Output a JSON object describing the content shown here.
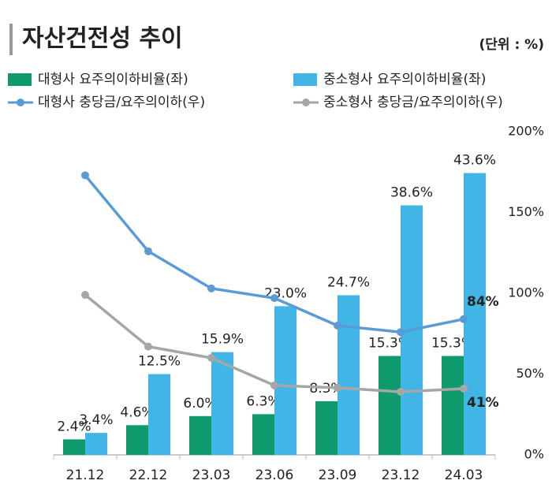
{
  "chart_data": {
    "type": "bar-line",
    "title": "자산건전성 추이",
    "unit_note": "(단위 : %)",
    "categories": [
      "21.12",
      "22.12",
      "23.03",
      "23.06",
      "23.09",
      "23.12",
      "24.03"
    ],
    "ylim": [
      0,
      50
    ],
    "y2lim": [
      0,
      200
    ],
    "y2ticks": [
      {
        "value": 0,
        "label": "0%"
      },
      {
        "value": 50,
        "label": "50%"
      },
      {
        "value": 100,
        "label": "100%"
      },
      {
        "value": 150,
        "label": "150%"
      },
      {
        "value": 200,
        "label": "200%"
      }
    ],
    "series": [
      {
        "name": "대형사 요주의이하비율(좌)",
        "type": "bar",
        "color": "#0f9a6e",
        "values": [
          2.4,
          4.6,
          6.0,
          6.3,
          8.3,
          15.3,
          15.3
        ],
        "value_labels": [
          "2.4%",
          "4.6%",
          "6.0%",
          "6.3%",
          "8.3%",
          "15.3%",
          "15.3%"
        ]
      },
      {
        "name": "중소형사 요주의이하비율(좌)",
        "type": "bar",
        "color": "#41b6e6",
        "values": [
          3.4,
          12.5,
          15.9,
          23.0,
          24.7,
          38.6,
          43.6
        ],
        "value_labels": [
          "3.4%",
          "12.5%",
          "15.9%",
          "23.0%",
          "24.7%",
          "38.6%",
          "43.6%"
        ]
      },
      {
        "name": "대형사 충당금/요주의이하(우)",
        "type": "line",
        "axis": "y2",
        "color": "#5b9bd5",
        "values": [
          173,
          126,
          103,
          97,
          80,
          76,
          84
        ],
        "value_labels": [
          null,
          null,
          null,
          null,
          null,
          null,
          "84%"
        ],
        "label_color": "#e8141b"
      },
      {
        "name": "중소형사 충당금/요주의이하(우)",
        "type": "line",
        "axis": "y2",
        "color": "#a6a6a6",
        "values": [
          99,
          67,
          60,
          43,
          41.5,
          39,
          41
        ],
        "value_labels": [
          null,
          null,
          null,
          null,
          null,
          null,
          "41%"
        ],
        "label_color": "#e8141b"
      }
    ]
  }
}
